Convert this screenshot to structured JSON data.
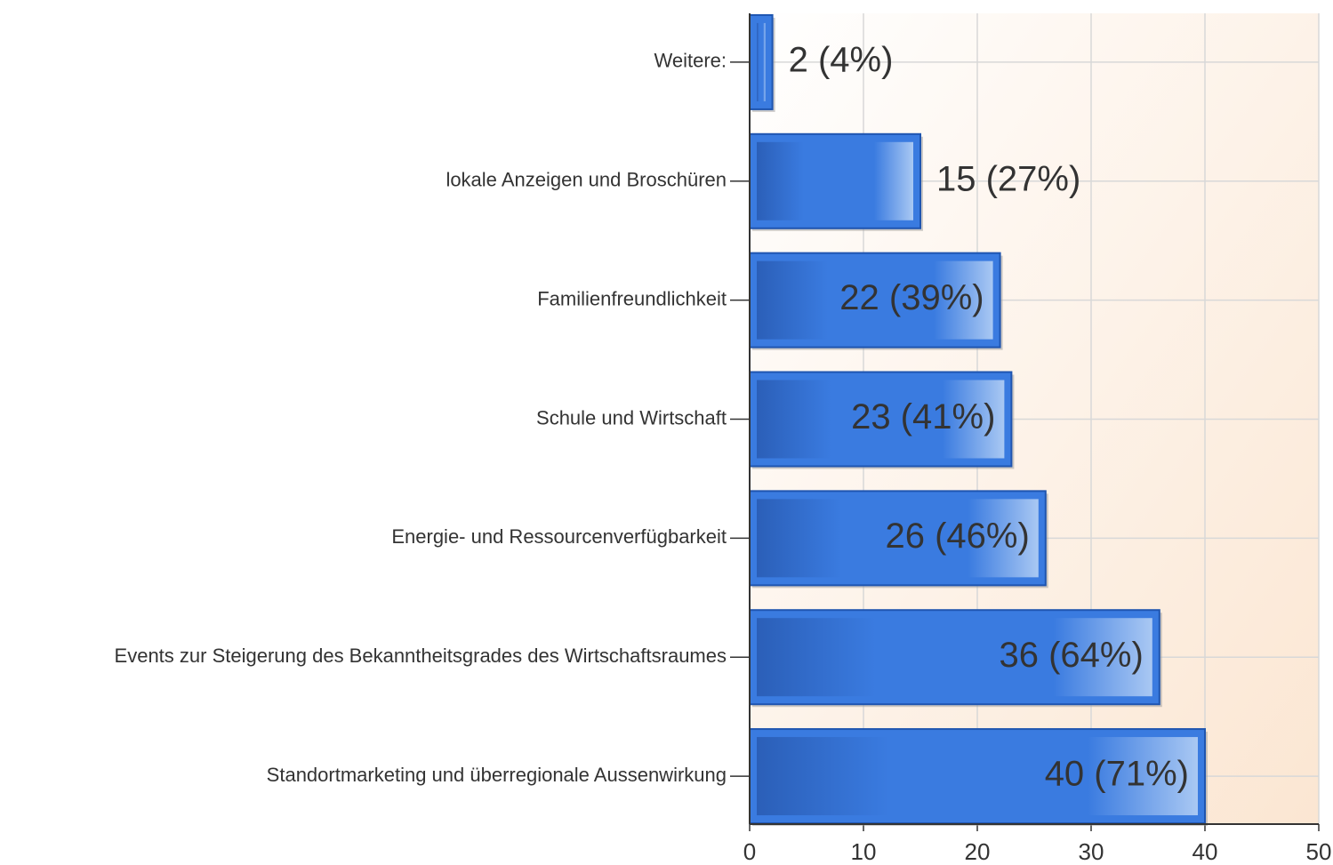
{
  "chart_data": {
    "type": "hbar",
    "categories": [
      "Weitere:",
      "lokale Anzeigen und Broschüren",
      "Familienfreundlichkeit",
      "Schule und Wirtschaft",
      "Energie- und Ressourcenverfügbarkeit",
      "Events zur Steigerung des Bekanntheitsgrades des Wirtschaftsraumes",
      "Standortmarketing und überregionale Aussenwirkung"
    ],
    "values": [
      2,
      15,
      22,
      23,
      26,
      36,
      40
    ],
    "value_labels": [
      "2 (4%)",
      "15 (27%)",
      "22 (39%)",
      "23 (41%)",
      "26 (46%)",
      "36 (64%)",
      "40 (71%)"
    ],
    "color": "#3a7be0",
    "xlim": [
      0,
      50
    ],
    "xticks": [
      0,
      10,
      20,
      30,
      40,
      50
    ],
    "grid": true
  }
}
